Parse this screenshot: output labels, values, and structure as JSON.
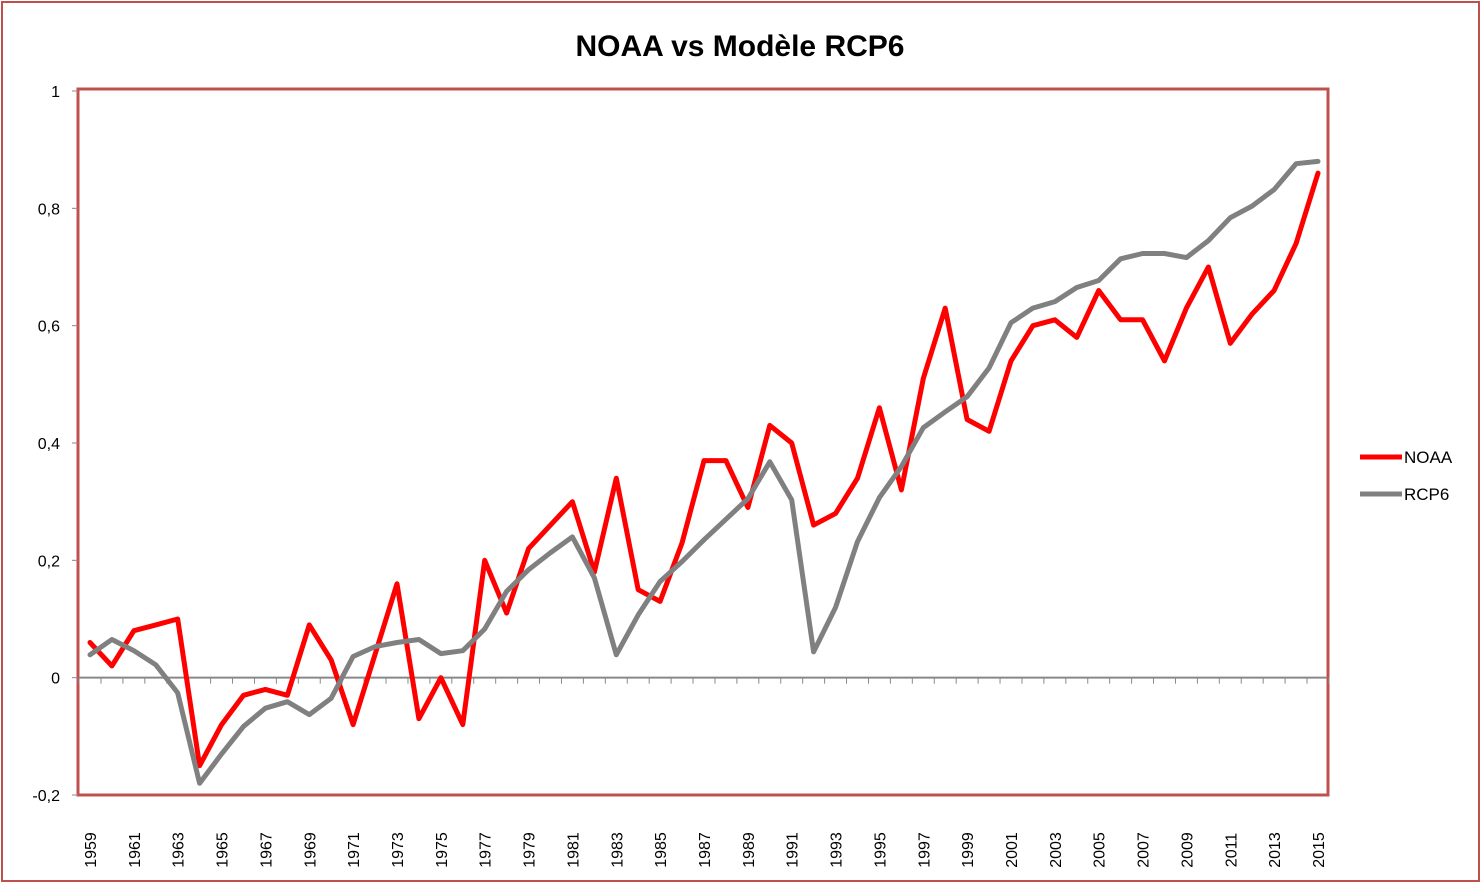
{
  "chart_data": {
    "type": "line",
    "title": "NOAA vs Modèle RCP6",
    "xlabel": "",
    "ylabel": "",
    "ylim": [
      -0.2,
      1
    ],
    "yticks": [
      "-0,2",
      "0",
      "0,2",
      "0,4",
      "0,6",
      "0,8",
      "1"
    ],
    "ytick_values": [
      -0.2,
      0,
      0.2,
      0.4,
      0.6,
      0.8,
      1
    ],
    "x": [
      1959,
      1960,
      1961,
      1962,
      1963,
      1964,
      1965,
      1966,
      1967,
      1968,
      1969,
      1970,
      1971,
      1972,
      1973,
      1974,
      1975,
      1976,
      1977,
      1978,
      1979,
      1980,
      1981,
      1982,
      1983,
      1984,
      1985,
      1986,
      1987,
      1988,
      1989,
      1990,
      1991,
      1992,
      1993,
      1994,
      1995,
      1996,
      1997,
      1998,
      1999,
      2000,
      2001,
      2002,
      2003,
      2004,
      2005,
      2006,
      2007,
      2008,
      2009,
      2010,
      2011,
      2012,
      2013,
      2014,
      2015
    ],
    "xtick_labels": [
      "1959",
      "1961",
      "1963",
      "1965",
      "1967",
      "1969",
      "1971",
      "1973",
      "1975",
      "1977",
      "1979",
      "1981",
      "1983",
      "1985",
      "1987",
      "1989",
      "1991",
      "1993",
      "1995",
      "1997",
      "1999",
      "2001",
      "2003",
      "2005",
      "2007",
      "2009",
      "2011",
      "2013",
      "2015"
    ],
    "grid": false,
    "legend_position": "right",
    "series": [
      {
        "name": "NOAA",
        "color": "#ff0000",
        "values": [
          0.06,
          0.02,
          0.08,
          0.09,
          0.1,
          -0.15,
          -0.08,
          -0.03,
          -0.02,
          -0.03,
          0.09,
          0.03,
          -0.08,
          0.04,
          0.16,
          -0.07,
          0.0,
          -0.08,
          0.2,
          0.11,
          0.22,
          0.26,
          0.3,
          0.18,
          0.34,
          0.15,
          0.13,
          0.23,
          0.37,
          0.37,
          0.29,
          0.43,
          0.4,
          0.26,
          0.28,
          0.34,
          0.46,
          0.32,
          0.51,
          0.63,
          0.44,
          0.42,
          0.54,
          0.6,
          0.61,
          0.58,
          0.66,
          0.61,
          0.61,
          0.54,
          0.63,
          0.7,
          0.57,
          0.62,
          0.66,
          0.74,
          0.86
        ]
      },
      {
        "name": "RCP6",
        "color": "#808080",
        "values": [
          0.039,
          0.065,
          0.046,
          0.022,
          -0.026,
          -0.18,
          -0.13,
          -0.083,
          -0.052,
          -0.041,
          -0.063,
          -0.035,
          0.036,
          0.053,
          0.06,
          0.065,
          0.041,
          0.046,
          0.083,
          0.147,
          0.184,
          0.213,
          0.24,
          0.17,
          0.039,
          0.107,
          0.164,
          0.198,
          0.235,
          0.27,
          0.305,
          0.368,
          0.303,
          0.044,
          0.12,
          0.232,
          0.307,
          0.36,
          0.426,
          0.453,
          0.479,
          0.528,
          0.605,
          0.63,
          0.641,
          0.665,
          0.677,
          0.714,
          0.723,
          0.723,
          0.716,
          0.745,
          0.784,
          0.804,
          0.832,
          0.876,
          0.88
        ]
      }
    ]
  },
  "colors": {
    "border": "#c0504d",
    "axis": "#888888"
  }
}
